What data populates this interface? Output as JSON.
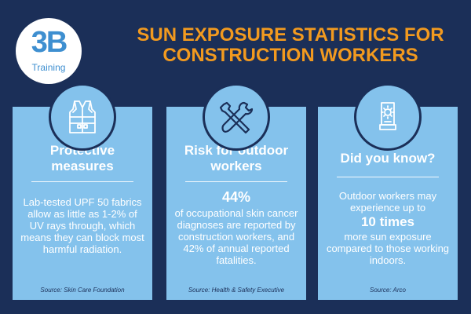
{
  "logo": {
    "mark": "3B",
    "sub": "Training"
  },
  "title": {
    "line1": "SUN EXPOSURE STATISTICS FOR",
    "line2": "CONSTRUCTION WORKERS"
  },
  "colors": {
    "background": "#1b2f58",
    "title": "#f29a1f",
    "card": "#84c2ec",
    "logo_blue": "#3e8fd0",
    "text": "#ffffff"
  },
  "cards": [
    {
      "icon": "safety-vest-icon",
      "heading": "Protective measures",
      "body": "Lab-tested UPF 50 fabrics allow as little as 1-2% of UV rays through, which means they can block most harmful radiation.",
      "source": "Source: Skin Care Foundation"
    },
    {
      "icon": "hammer-wrench-icon",
      "heading": "Risk for outdoor workers",
      "stat": "44%",
      "body": "of occupational skin cancer diagnoses are reported by construction workers, and 42% of annual reported fatalities.",
      "source": "Source: Health & Safety Executive"
    },
    {
      "icon": "sunscreen-bottle-icon",
      "heading": "Did you know?",
      "body_before": "Outdoor workers may experience up to",
      "stat": "10 times",
      "body_after": "more sun exposure compared to those working indoors.",
      "source": "Source: Arco"
    }
  ]
}
